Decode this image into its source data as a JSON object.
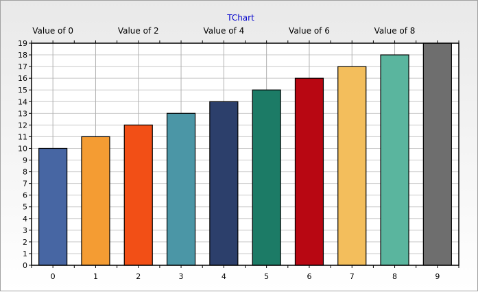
{
  "chart_data": {
    "type": "bar",
    "title": "TChart",
    "categories": [
      "0",
      "1",
      "2",
      "3",
      "4",
      "5",
      "6",
      "7",
      "8",
      "9"
    ],
    "top_labels": [
      "Value of 0",
      "",
      "Value of 2",
      "",
      "Value of 4",
      "",
      "Value of 6",
      "",
      "Value of 8",
      ""
    ],
    "values": [
      10,
      11,
      12,
      13,
      14,
      15,
      16,
      17,
      18,
      19
    ],
    "colors": [
      "#4766a3",
      "#f49c33",
      "#f24f16",
      "#4b96a6",
      "#2c3f6b",
      "#1c7b66",
      "#b80712",
      "#f3be5c",
      "#5ab59e",
      "#6e6e6e"
    ],
    "ylim": [
      0,
      19
    ],
    "yticks": [
      "0",
      "1",
      "2",
      "3",
      "4",
      "5",
      "6",
      "7",
      "8",
      "9",
      "10",
      "11",
      "12",
      "13",
      "14",
      "15",
      "16",
      "17",
      "18",
      "19"
    ],
    "grid": true,
    "xlabel": "",
    "ylabel": ""
  }
}
